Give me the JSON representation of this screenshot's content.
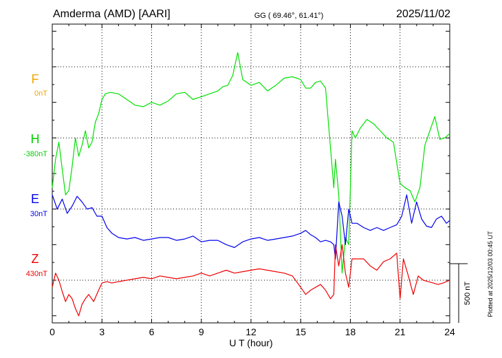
{
  "header": {
    "station": "Amderma (AMD)  [AARI]",
    "coords": "GG ( 69.46°,  61.41°)",
    "date": "2025/11/02"
  },
  "footer": {
    "plotted": "Plotted at 2025/12/03 00:45 UT"
  },
  "colors": {
    "F": "#f0a800",
    "H": "#00e000",
    "E": "#0000ee",
    "Z": "#ee0000",
    "axis": "#000000",
    "grid": "#000000"
  },
  "chart_data": {
    "type": "line",
    "xlabel": "U T (hour)",
    "xlim": [
      0,
      24
    ],
    "xticks": [
      0,
      3,
      6,
      9,
      12,
      15,
      18,
      21,
      24
    ],
    "ylim": [
      -1050,
      1050
    ],
    "scale_bar": {
      "label": "500 nT",
      "value": 500
    },
    "series": [
      {
        "name": "F",
        "offset": "0nT",
        "baseline": 750,
        "x": [],
        "y": []
      },
      {
        "name": "H",
        "offset": "-380nT",
        "baseline": 250,
        "x": [
          0,
          0.2,
          0.4,
          0.6,
          0.8,
          1.0,
          1.2,
          1.4,
          1.6,
          1.8,
          2.0,
          2.2,
          2.4,
          2.6,
          2.8,
          3.0,
          3.2,
          3.5,
          4.0,
          4.5,
          5.0,
          5.5,
          6.0,
          6.5,
          7.0,
          7.5,
          8.0,
          8.5,
          9.0,
          9.5,
          10.0,
          10.3,
          10.6,
          10.9,
          11.2,
          11.5,
          12.0,
          12.5,
          13.0,
          13.5,
          14.0,
          14.5,
          15.0,
          15.3,
          15.6,
          15.9,
          16.2,
          16.5,
          16.8,
          17.0,
          17.1,
          17.3,
          17.5,
          17.7,
          17.9,
          18.1,
          18.3,
          18.6,
          19.0,
          19.4,
          19.8,
          20.2,
          20.6,
          21.0,
          21.3,
          21.6,
          21.9,
          22.2,
          22.5,
          22.8,
          23.1,
          23.4,
          23.7,
          24.0
        ],
        "y": [
          -100,
          100,
          220,
          30,
          -150,
          -120,
          50,
          250,
          120,
          200,
          300,
          180,
          220,
          360,
          420,
          520,
          560,
          570,
          560,
          520,
          480,
          470,
          500,
          480,
          510,
          560,
          570,
          520,
          540,
          560,
          580,
          610,
          620,
          690,
          850,
          660,
          620,
          640,
          580,
          620,
          670,
          680,
          660,
          600,
          600,
          640,
          650,
          600,
          180,
          -100,
          100,
          -150,
          -700,
          -450,
          -500,
          300,
          250,
          320,
          380,
          350,
          300,
          250,
          220,
          -70,
          -100,
          -120,
          -200,
          -100,
          200,
          300,
          400,
          240,
          250,
          280
        ]
      },
      {
        "name": "E",
        "offset": "30nT",
        "baseline": -250,
        "x": [
          0,
          0.3,
          0.6,
          0.9,
          1.2,
          1.5,
          1.8,
          2.1,
          2.4,
          2.7,
          3.0,
          3.3,
          3.6,
          4.0,
          4.5,
          5.0,
          5.5,
          6.0,
          6.5,
          7.0,
          7.5,
          8.0,
          8.5,
          9.0,
          9.5,
          10.0,
          10.5,
          11.0,
          11.5,
          12.0,
          12.5,
          13.0,
          13.5,
          14.0,
          14.5,
          15.0,
          15.3,
          15.6,
          15.9,
          16.2,
          16.5,
          16.8,
          17.0,
          17.1,
          17.3,
          17.5,
          17.7,
          17.9,
          18.1,
          18.4,
          18.8,
          19.2,
          19.6,
          20.0,
          20.4,
          20.8,
          21.1,
          21.4,
          21.7,
          22.0,
          22.3,
          22.6,
          22.9,
          23.2,
          23.5,
          23.8,
          24.0
        ],
        "y": [
          -150,
          -250,
          -180,
          -280,
          -230,
          -160,
          -200,
          -250,
          -240,
          -300,
          -300,
          -380,
          -420,
          -450,
          -460,
          -450,
          -470,
          -460,
          -450,
          -450,
          -470,
          -460,
          -440,
          -480,
          -470,
          -470,
          -500,
          -520,
          -480,
          -460,
          -450,
          -470,
          -460,
          -450,
          -440,
          -420,
          -400,
          -430,
          -450,
          -480,
          -470,
          -480,
          -500,
          -600,
          -200,
          -300,
          -500,
          -250,
          -350,
          -350,
          -380,
          -400,
          -380,
          -400,
          -380,
          -360,
          -300,
          -150,
          -350,
          -200,
          -320,
          -370,
          -380,
          -320,
          -300,
          -350,
          -330
        ]
      },
      {
        "name": "Z",
        "offset": "430nT",
        "baseline": -750,
        "x": [
          0,
          0.2,
          0.4,
          0.6,
          0.8,
          1.0,
          1.2,
          1.4,
          1.6,
          1.8,
          2.0,
          2.2,
          2.5,
          2.8,
          3.0,
          3.3,
          3.6,
          4.0,
          4.5,
          5.0,
          5.5,
          6.0,
          6.5,
          7.0,
          7.5,
          8.0,
          8.5,
          9.0,
          9.5,
          10.0,
          10.5,
          11.0,
          11.5,
          12.0,
          12.5,
          13.0,
          13.5,
          14.0,
          14.5,
          15.0,
          15.3,
          15.6,
          15.9,
          16.2,
          16.5,
          16.8,
          17.0,
          17.1,
          17.3,
          17.5,
          17.7,
          17.9,
          18.1,
          18.4,
          18.8,
          19.2,
          19.6,
          20.0,
          20.4,
          20.8,
          21.0,
          21.2,
          21.5,
          21.8,
          22.1,
          22.4,
          22.7,
          23.0,
          23.3,
          23.6,
          24.0
        ],
        "y": [
          -800,
          -700,
          -750,
          -830,
          -900,
          -850,
          -880,
          -950,
          -1000,
          -920,
          -880,
          -850,
          -900,
          -820,
          -770,
          -760,
          -770,
          -760,
          -750,
          -740,
          -730,
          -740,
          -720,
          -730,
          -740,
          -730,
          -720,
          -700,
          -720,
          -700,
          -680,
          -700,
          -690,
          -680,
          -670,
          -680,
          -690,
          -700,
          -720,
          -800,
          -850,
          -820,
          -800,
          -780,
          -820,
          -880,
          -850,
          -500,
          -650,
          -500,
          -700,
          -800,
          -600,
          -600,
          -600,
          -650,
          -680,
          -620,
          -600,
          -560,
          -880,
          -600,
          -720,
          -850,
          -720,
          -750,
          -760,
          -770,
          -780,
          -770,
          -750
        ]
      }
    ]
  }
}
